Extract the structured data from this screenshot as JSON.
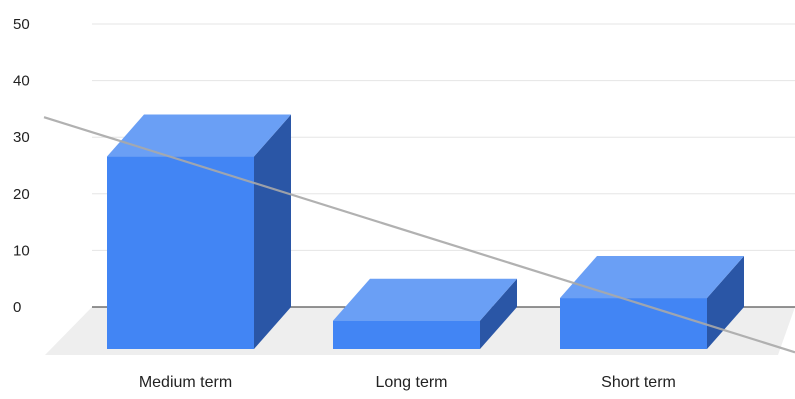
{
  "chart_data": {
    "type": "bar",
    "three_d": true,
    "categories": [
      "Medium term",
      "Long term",
      "Short term"
    ],
    "values": [
      34,
      5,
      9
    ],
    "y_ticks": [
      0,
      10,
      20,
      30,
      40,
      50
    ],
    "ylim": [
      0,
      50
    ],
    "title": "",
    "xlabel": "",
    "ylabel": "",
    "grid": true,
    "legend": "none",
    "trendline": {
      "type": "linear",
      "color": "#a9a9a9"
    },
    "colors": {
      "bar_front": "#4285f4",
      "bar_top": "#6a9ff5",
      "bar_side": "#2a56a6",
      "floor": "#eeeeee",
      "grid": "#e5e5e5",
      "axis": "#555555"
    }
  }
}
